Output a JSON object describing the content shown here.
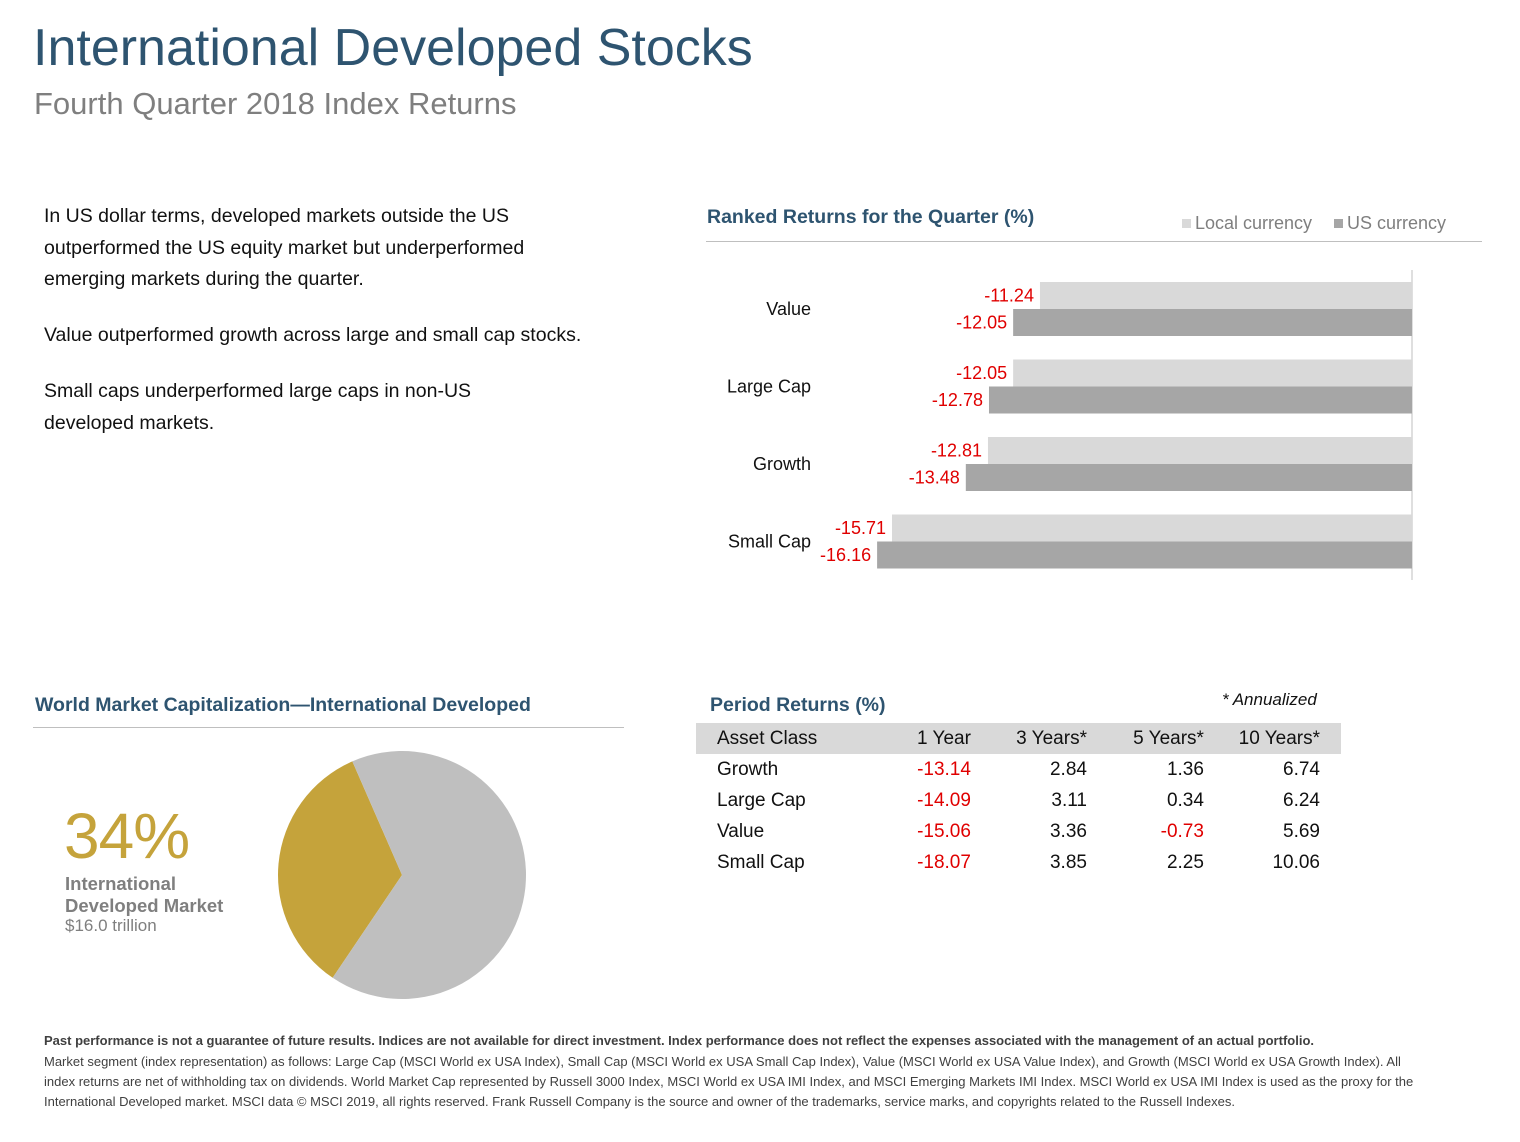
{
  "header": {
    "title": "International Developed Stocks",
    "subtitle": "Fourth Quarter 2018 Index Returns"
  },
  "bullets": [
    "In US dollar terms, developed markets outside the US outperformed the US equity market but underperformed emerging markets during the quarter.",
    "Value outperformed growth across large and small cap stocks.",
    "Small caps underperformed large caps in non-US developed markets."
  ],
  "ranked": {
    "title": "Ranked Returns for the Quarter (%)",
    "legend": [
      {
        "label": "Local currency",
        "color": "#d9d9d9"
      },
      {
        "label": "US currency",
        "color": "#a6a6a6"
      }
    ]
  },
  "chart_data": [
    {
      "type": "bar",
      "orientation": "horizontal",
      "title": "Ranked Returns for the Quarter (%)",
      "categories": [
        "Value",
        "Large Cap",
        "Growth",
        "Small Cap"
      ],
      "series": [
        {
          "name": "Local currency",
          "color": "#d9d9d9",
          "values": [
            -11.24,
            -12.05,
            -12.81,
            -15.71
          ]
        },
        {
          "name": "US currency",
          "color": "#a6a6a6",
          "values": [
            -12.05,
            -12.78,
            -13.48,
            -16.16
          ]
        }
      ],
      "value_label_color": "#e00000",
      "legend_position": "top-right"
    },
    {
      "type": "pie",
      "title": "World Market Capitalization—International Developed",
      "slices": [
        {
          "value": 34,
          "color": "#c5a33b"
        },
        {
          "value": 66,
          "color": "#bfbfbf"
        }
      ]
    },
    {
      "type": "table",
      "title": "Period Returns (%)",
      "note": "* Annualized",
      "columns": [
        "Asset Class",
        "1 Year",
        "3 Years*",
        "5 Years*",
        "10 Years*"
      ],
      "rows": [
        [
          "Growth",
          "-13.14",
          "2.84",
          "1.36",
          "6.74"
        ],
        [
          "Large Cap",
          "-14.09",
          "3.11",
          "0.34",
          "6.24"
        ],
        [
          "Value",
          "-15.06",
          "3.36",
          "-0.73",
          "5.69"
        ],
        [
          "Small Cap",
          "-18.07",
          "3.85",
          "2.25",
          "10.06"
        ]
      ]
    }
  ],
  "world_cap": {
    "title": "World Market Capitalization—International Developed",
    "percent": "34%",
    "name": "International Developed Market",
    "value": "$16.0 trillion"
  },
  "period": {
    "title": "Period Returns (%)",
    "note": "* Annualized"
  },
  "footnote": {
    "bold": "Past performance is not a guarantee of future results. Indices are not available for direct investment. Index performance does not reflect the expenses associated with the management of an actual portfolio.",
    "body": "Market segment (index representation) as follows: Large Cap (MSCI World ex USA Index), Small Cap (MSCI World ex USA Small Cap Index), Value (MSCI World ex USA Value Index), and Growth (MSCI World ex USA Growth Index). All index returns are net of withholding tax on dividends. World Market Cap represented by Russell 3000 Index, MSCI World ex USA IMI Index, and MSCI Emerging Markets IMI Index. MSCI World ex USA IMI Index is used as the proxy for the International Developed market. MSCI data © MSCI 2019, all rights reserved. Frank Russell Company is the source and owner of the trademarks, service marks, and copyrights related to the Russell Indexes."
  }
}
